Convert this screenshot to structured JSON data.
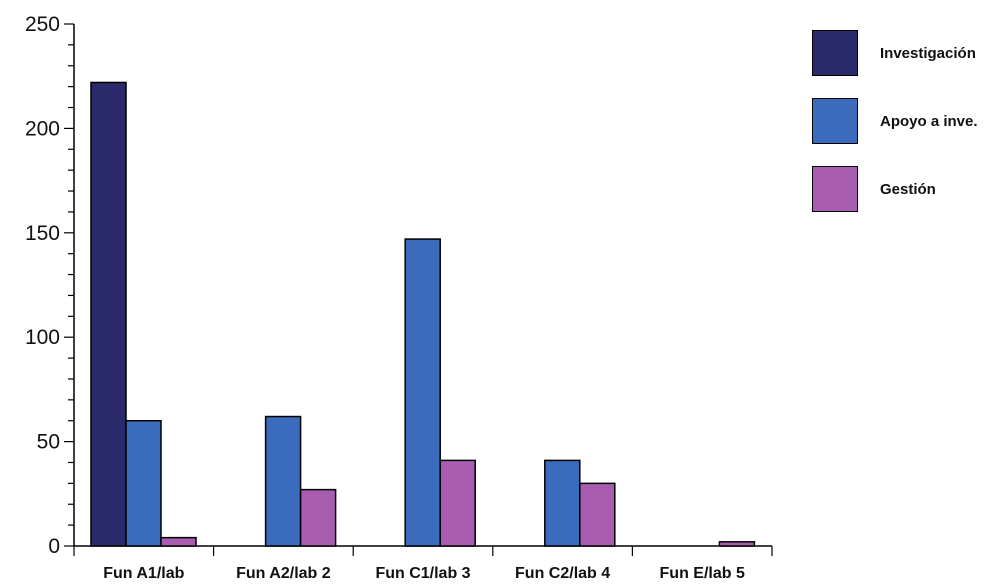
{
  "chart_data": {
    "type": "bar",
    "title": "",
    "xlabel": "",
    "ylabel": "",
    "ylim": [
      0,
      250
    ],
    "yticks": [
      0,
      50,
      100,
      150,
      200,
      250
    ],
    "categories": [
      "Fun A1/lab",
      "Fun A2/lab 2",
      "Fun C1/lab 3",
      "Fun C2/lab 4",
      "Fun E/lab 5"
    ],
    "series": [
      {
        "name": "Investigación",
        "color": "#2b2a6b",
        "values": [
          222,
          0,
          0,
          0,
          0
        ]
      },
      {
        "name": "Apoyo a inve.",
        "color": "#3a6bbd",
        "values": [
          60,
          62,
          147,
          41,
          0
        ]
      },
      {
        "name": "Gestión",
        "color": "#a95db0",
        "values": [
          4,
          27,
          41,
          30,
          2
        ]
      }
    ],
    "grid": false,
    "legend_position": "right"
  }
}
